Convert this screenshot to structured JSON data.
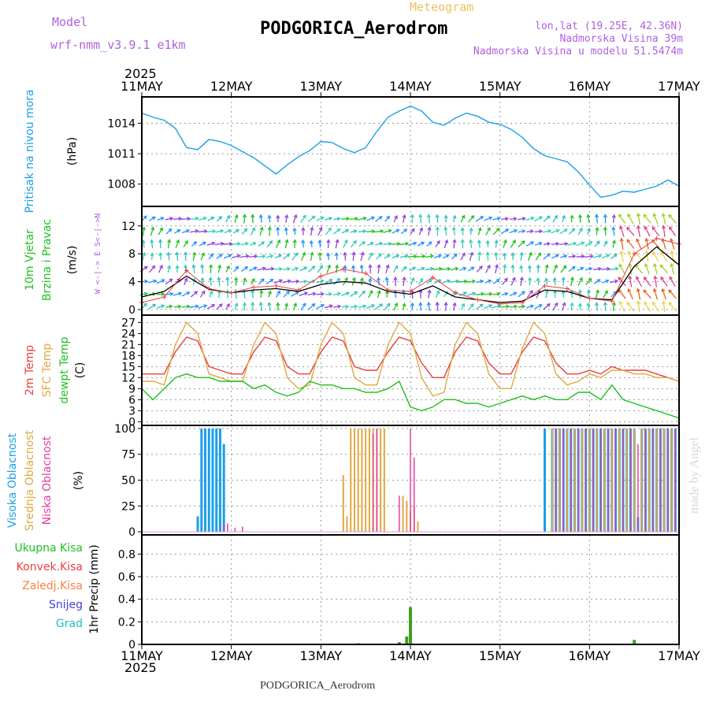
{
  "header": {
    "model_label": "Model",
    "model_name": "wrf-nmm_v3.9.1 e1km",
    "title": "PODGORICA_Aerodrom",
    "subtitle": "Meteogram",
    "lonlat": "lon,lat (19.25E, 42.36N)",
    "elevation": "Nadmorska Visina 39m",
    "model_elevation": "Nadmorska Visina u modelu 51.5474m",
    "year_top": "2025",
    "year_bottom": "2025",
    "footer_title": "PODGORICA_Aerodrom",
    "watermark": "made by Angel",
    "wind_compass": "W <-|-> E  S<-|->N"
  },
  "colors": {
    "pressure": "#1aa0e8",
    "t2m": "#e84040",
    "sfc": "#e0a840",
    "dew": "#20c020",
    "high_cloud": "#1aa0e8",
    "mid_cloud": "#e0a840",
    "low_cloud": "#e040a0",
    "precip": "#40a020",
    "wind_speed": "#000000",
    "gust": "#e84040"
  },
  "x_axis": [
    "11MAY",
    "12MAY",
    "13MAY",
    "14MAY",
    "15MAY",
    "16MAY",
    "17MAY"
  ],
  "chart_data": [
    {
      "type": "line",
      "panel": "pressure",
      "ylabel_1": "Pritisak na nivou mora",
      "ylabel_2": "(hPa)",
      "ylim": [
        1005.8,
        1016.6
      ],
      "yticks": [
        "1008",
        "1011",
        "1014"
      ],
      "x_hours": [
        0,
        3,
        6,
        9,
        12,
        15,
        18,
        21,
        24,
        27,
        30,
        33,
        36,
        39,
        42,
        45,
        48,
        51,
        54,
        57,
        60,
        63,
        66,
        69,
        72,
        75,
        78,
        81,
        84,
        87,
        90,
        93,
        96,
        99,
        102,
        105,
        108,
        111,
        114,
        117,
        120,
        123,
        126,
        129,
        132,
        135,
        138,
        141,
        144
      ],
      "values": [
        1015.0,
        1014.6,
        1014.3,
        1013.5,
        1011.6,
        1011.4,
        1012.4,
        1012.2,
        1011.8,
        1011.2,
        1010.6,
        1009.8,
        1009.0,
        1009.9,
        1010.7,
        1011.3,
        1012.2,
        1012.1,
        1011.5,
        1011.1,
        1011.6,
        1013.2,
        1014.6,
        1015.2,
        1015.7,
        1015.2,
        1014.1,
        1013.8,
        1014.5,
        1015.0,
        1014.7,
        1014.1,
        1013.9,
        1013.4,
        1012.6,
        1011.5,
        1010.8,
        1010.5,
        1010.2,
        1009.2,
        1007.9,
        1006.7,
        1006.9,
        1007.3,
        1007.2,
        1007.5,
        1007.8,
        1008.4,
        1007.8
      ]
    },
    {
      "type": "line",
      "panel": "wind",
      "ylabel_1": "10m Vjetar",
      "ylabel_2": "Brzina i Pravac",
      "ylabel_3": "(m/s)",
      "ylim": [
        -0.8,
        14.8
      ],
      "yticks": [
        "0",
        "4",
        "8",
        "12"
      ],
      "series": [
        {
          "name": "speed",
          "x_hours": [
            0,
            6,
            12,
            18,
            24,
            30,
            36,
            42,
            48,
            54,
            60,
            66,
            72,
            78,
            84,
            90,
            96,
            102,
            108,
            114,
            120,
            126,
            132,
            138,
            144
          ],
          "values": [
            1.8,
            2.6,
            4.8,
            2.9,
            2.4,
            2.8,
            3.0,
            2.6,
            3.6,
            4.0,
            3.8,
            2.6,
            2.2,
            3.4,
            1.8,
            1.4,
            1.0,
            1.2,
            2.8,
            2.6,
            1.6,
            1.4,
            6.2,
            9.0,
            6.4
          ]
        },
        {
          "name": "gust",
          "x_hours": [
            0,
            6,
            12,
            18,
            24,
            30,
            36,
            42,
            48,
            54,
            60,
            66,
            72,
            78,
            84,
            90,
            96,
            102,
            108,
            114,
            120,
            126,
            132,
            138,
            144
          ],
          "values": [
            1.0,
            1.8,
            5.6,
            3.0,
            2.4,
            3.2,
            3.4,
            2.8,
            4.8,
            5.8,
            5.2,
            2.8,
            2.6,
            4.6,
            2.4,
            1.4,
            0.8,
            1.0,
            3.4,
            3.0,
            1.6,
            1.2,
            8.0,
            10.2,
            9.4
          ]
        }
      ]
    },
    {
      "type": "line",
      "panel": "temperature",
      "ylabel_1": "2m Temp",
      "ylabel_2": "SFC Temp",
      "ylabel_3": "dewpt Temp",
      "ylabel_4": "(C)",
      "ylim": [
        -1.0,
        29.0
      ],
      "yticks": [
        "0",
        "3",
        "6",
        "9",
        "12",
        "15",
        "18",
        "21",
        "24",
        "27"
      ],
      "x_hours": [
        0,
        3,
        6,
        9,
        12,
        15,
        18,
        21,
        24,
        27,
        30,
        33,
        36,
        39,
        42,
        45,
        48,
        51,
        54,
        57,
        60,
        63,
        66,
        69,
        72,
        75,
        78,
        81,
        84,
        87,
        90,
        93,
        96,
        99,
        102,
        105,
        108,
        111,
        114,
        117,
        120,
        123,
        126,
        129,
        132,
        135,
        138,
        141,
        144
      ],
      "series": [
        {
          "name": "2m Temp",
          "values": [
            13,
            13,
            13,
            19,
            23,
            22,
            15,
            14,
            13,
            13,
            19,
            23,
            22,
            15,
            13,
            13,
            19,
            23,
            22,
            15,
            14,
            14,
            19,
            23,
            22,
            16,
            12,
            12,
            19,
            23,
            22,
            16,
            13,
            13,
            19,
            23,
            22,
            16,
            13,
            13,
            14,
            13,
            15,
            14,
            14,
            14,
            13,
            12,
            11
          ]
        },
        {
          "name": "SFC Temp",
          "values": [
            11,
            11,
            10,
            21,
            27,
            24,
            13,
            12,
            11,
            11,
            21,
            27,
            24,
            12,
            9,
            10,
            21,
            27,
            24,
            12,
            10,
            10,
            21,
            27,
            24,
            12,
            7,
            8,
            21,
            27,
            24,
            13,
            9,
            9,
            20,
            27,
            24,
            13,
            10,
            11,
            13,
            12,
            14,
            14,
            13,
            13,
            12,
            12,
            11
          ]
        },
        {
          "name": "dewpt Temp",
          "values": [
            9,
            6,
            9,
            12,
            13,
            12,
            12,
            11,
            11,
            11,
            9,
            10,
            8,
            7,
            8,
            11,
            10,
            10,
            9,
            9,
            8,
            8,
            9,
            11,
            4,
            3,
            4,
            6,
            6,
            5,
            5,
            4,
            5,
            6,
            7,
            6,
            7,
            6,
            6,
            8,
            8,
            6,
            10,
            6,
            5,
            4,
            3,
            2,
            1
          ]
        }
      ]
    },
    {
      "type": "bar",
      "panel": "clouds",
      "ylabel_1": "Visoka Oblacnost",
      "ylabel_2": "Srednja Oblacnost",
      "ylabel_3": "Niska Oblacnost",
      "ylabel_4": "(%)",
      "ylim": [
        -3,
        103
      ],
      "yticks": [
        "0",
        "25",
        "50",
        "75",
        "100"
      ],
      "series": [
        {
          "name": "high",
          "x_hours": [
            15,
            16,
            17,
            18,
            19,
            20,
            21,
            22,
            108,
            110,
            111,
            112,
            113,
            114,
            115,
            116,
            117,
            118,
            119,
            120,
            121,
            122,
            123,
            124,
            125,
            126,
            127,
            128,
            129,
            130,
            131,
            132,
            133,
            134,
            135,
            136,
            137,
            138,
            139,
            140,
            141,
            142,
            143
          ],
          "values": [
            15,
            100,
            100,
            100,
            100,
            100,
            100,
            85,
            100,
            100,
            100,
            100,
            100,
            100,
            100,
            100,
            100,
            100,
            100,
            100,
            100,
            100,
            100,
            100,
            100,
            100,
            100,
            100,
            100,
            100,
            100,
            100,
            14,
            100,
            100,
            100,
            100,
            100,
            100,
            100,
            100,
            100,
            100
          ]
        },
        {
          "name": "mid",
          "x_hours": [
            54,
            55,
            56,
            57,
            58,
            59,
            60,
            61,
            62,
            63,
            64,
            65,
            70,
            71,
            72,
            73,
            74,
            110,
            112,
            114,
            116,
            118,
            120,
            122,
            124,
            126,
            128,
            130,
            132,
            134,
            136,
            138,
            140,
            142,
            144
          ],
          "values": [
            55,
            15,
            100,
            100,
            100,
            100,
            100,
            100,
            100,
            100,
            100,
            100,
            35,
            30,
            20,
            25,
            10,
            100,
            100,
            100,
            100,
            100,
            100,
            100,
            100,
            100,
            100,
            100,
            100,
            100,
            100,
            100,
            100,
            100,
            100
          ]
        },
        {
          "name": "low",
          "x_hours": [
            22,
            23,
            25,
            27,
            62,
            63,
            69,
            72,
            73,
            111,
            113,
            115,
            117,
            119,
            121,
            123,
            125,
            127,
            129,
            131,
            133,
            135,
            137,
            139,
            141,
            143
          ],
          "values": [
            8,
            8,
            4,
            5,
            95,
            100,
            35,
            100,
            72,
            100,
            100,
            100,
            100,
            100,
            100,
            100,
            100,
            100,
            100,
            100,
            85,
            100,
            100,
            100,
            100,
            100
          ]
        }
      ]
    },
    {
      "type": "bar",
      "panel": "precip",
      "ylabel_1": "1hr Precip (mm)",
      "legend": [
        "Ukupna Kisa",
        "Konvek.Kisa",
        "Zaledj.Kisa",
        "Snijeg",
        "Grad"
      ],
      "legend_colors": [
        "#20c020",
        "#e84040",
        "#ff8040",
        "#4040e0",
        "#20c0c0"
      ],
      "ylim": [
        0,
        0.97
      ],
      "yticks": [
        "0",
        "0.2",
        "0.4",
        "0.6",
        "0.8"
      ],
      "x_hours": [
        58,
        69,
        71,
        72,
        132
      ],
      "values": [
        0.01,
        0.02,
        0.07,
        0.33,
        0.04
      ]
    }
  ]
}
